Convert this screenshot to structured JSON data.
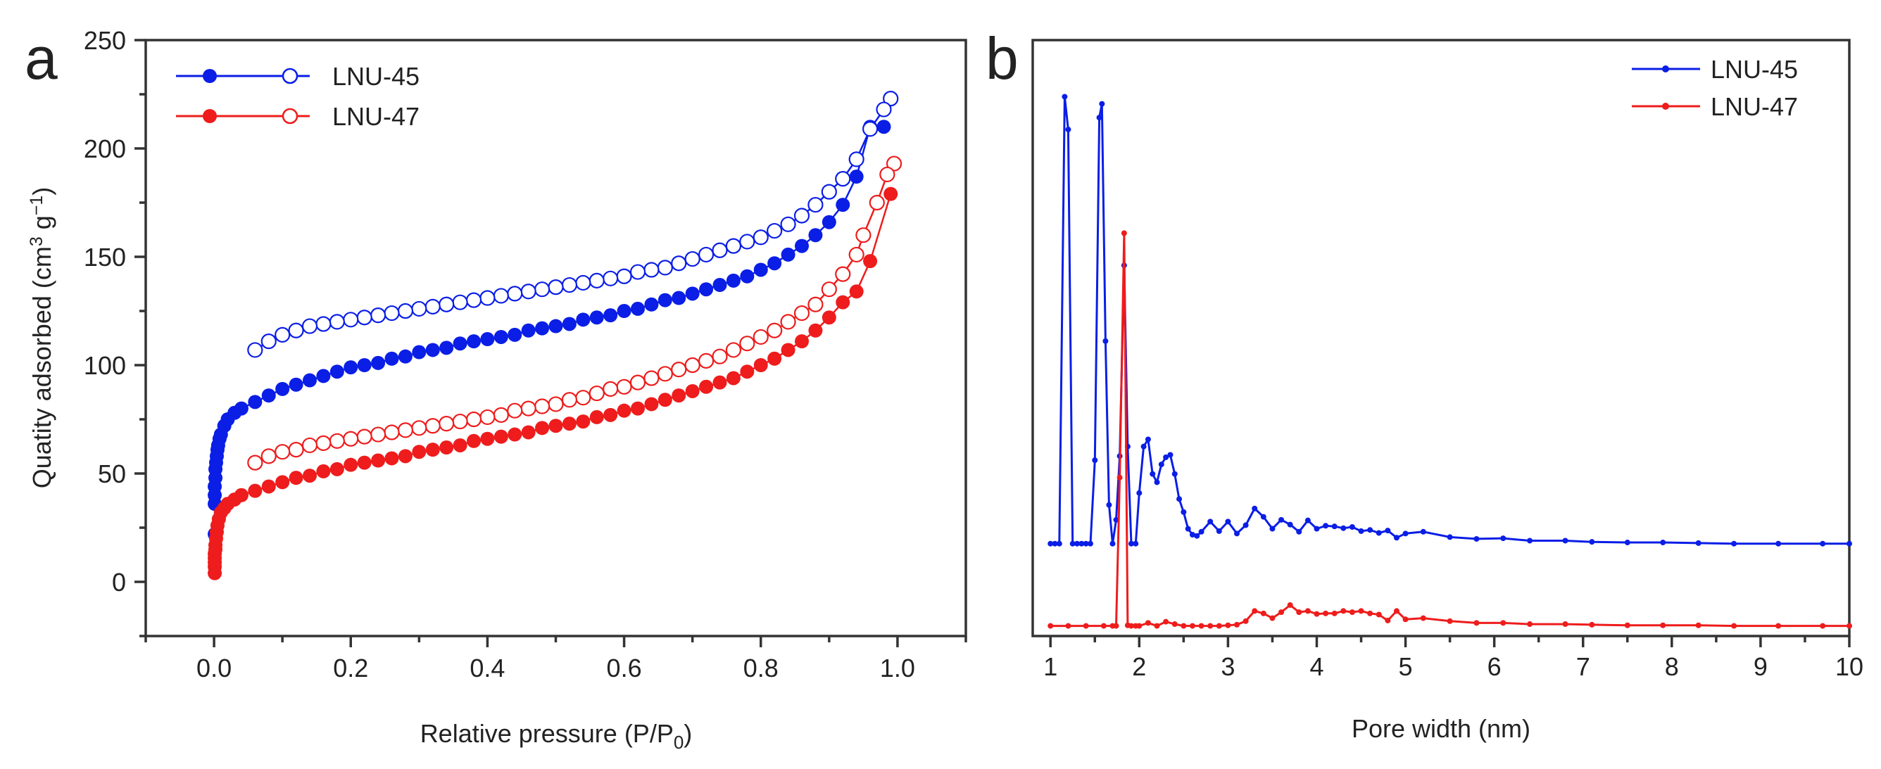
{
  "chart_data": [
    {
      "panel": "a",
      "type": "scatter",
      "title": "",
      "xlabel": "Relative pressure (P/P0)",
      "xlabel_main": "Relative pressure (P/P",
      "xlabel_sub": "0",
      "xlabel_end": ")",
      "ylabel": "Quatity adsorbed (cm3 g-1)",
      "ylabel_main": "Quatity adsorbed (cm",
      "ylabel_sup1": "3",
      "ylabel_mid": " g",
      "ylabel_sup2": "−1",
      "ylabel_end": ")",
      "xlim": [
        -0.1,
        1.1
      ],
      "ylim": [
        -25,
        250
      ],
      "xticks": [
        0.0,
        0.2,
        0.4,
        0.6,
        0.8,
        1.0
      ],
      "xtick_labels": [
        "0.0",
        "0.2",
        "0.4",
        "0.6",
        "0.8",
        "1.0"
      ],
      "yticks": [
        0,
        50,
        100,
        150,
        200,
        250
      ],
      "ytick_labels": [
        "0",
        "50",
        "100",
        "150",
        "200",
        "250"
      ],
      "legend_position": "top-left",
      "series": [
        {
          "name": "LNU-45 adsorption",
          "legend": "LNU-45",
          "color": "#0a1ee6",
          "marker": "filled",
          "x": [
            0.001,
            0.001,
            0.001,
            0.001,
            0.002,
            0.002,
            0.003,
            0.004,
            0.005,
            0.006,
            0.008,
            0.01,
            0.015,
            0.02,
            0.03,
            0.04,
            0.06,
            0.08,
            0.1,
            0.12,
            0.14,
            0.16,
            0.18,
            0.2,
            0.22,
            0.24,
            0.26,
            0.28,
            0.3,
            0.32,
            0.34,
            0.36,
            0.38,
            0.4,
            0.42,
            0.44,
            0.46,
            0.48,
            0.5,
            0.52,
            0.54,
            0.56,
            0.58,
            0.6,
            0.62,
            0.64,
            0.66,
            0.68,
            0.7,
            0.72,
            0.74,
            0.76,
            0.78,
            0.8,
            0.82,
            0.84,
            0.86,
            0.88,
            0.9,
            0.92,
            0.94,
            0.96,
            0.98
          ],
          "y": [
            22,
            36,
            40,
            44,
            48,
            52,
            55,
            58,
            61,
            63,
            66,
            68,
            72,
            75,
            78,
            80,
            83,
            86,
            89,
            91,
            93,
            95,
            97,
            99,
            100,
            101,
            103,
            104,
            106,
            107,
            108,
            110,
            111,
            112,
            113,
            114,
            116,
            117,
            118,
            119,
            121,
            122,
            123,
            125,
            126,
            128,
            130,
            131,
            133,
            135,
            137,
            139,
            141,
            144,
            147,
            151,
            155,
            160,
            166,
            174,
            187,
            210,
            210
          ]
        },
        {
          "name": "LNU-45 desorption",
          "legend": "LNU-45",
          "color": "#0a1ee6",
          "marker": "open",
          "x": [
            0.99,
            0.98,
            0.96,
            0.94,
            0.92,
            0.9,
            0.88,
            0.86,
            0.84,
            0.82,
            0.8,
            0.78,
            0.76,
            0.74,
            0.72,
            0.7,
            0.68,
            0.66,
            0.64,
            0.62,
            0.6,
            0.58,
            0.56,
            0.54,
            0.52,
            0.5,
            0.48,
            0.46,
            0.44,
            0.42,
            0.4,
            0.38,
            0.36,
            0.34,
            0.32,
            0.3,
            0.28,
            0.26,
            0.24,
            0.22,
            0.2,
            0.18,
            0.16,
            0.14,
            0.12,
            0.1,
            0.08,
            0.06
          ],
          "y": [
            223,
            218,
            209,
            195,
            186,
            180,
            174,
            169,
            165,
            162,
            159,
            157,
            155,
            153,
            151,
            149,
            147,
            145,
            144,
            143,
            141,
            140,
            139,
            138,
            137,
            136,
            135,
            134,
            133,
            132,
            131,
            130,
            129,
            128,
            127,
            126,
            125,
            124,
            123,
            122,
            121,
            120,
            119,
            118,
            116,
            114,
            111,
            107
          ]
        },
        {
          "name": "LNU-47 adsorption",
          "legend": "LNU-47",
          "color": "#ee1c1c",
          "marker": "filled",
          "x": [
            0.001,
            0.001,
            0.001,
            0.001,
            0.001,
            0.002,
            0.002,
            0.003,
            0.004,
            0.005,
            0.007,
            0.01,
            0.015,
            0.02,
            0.03,
            0.04,
            0.06,
            0.08,
            0.1,
            0.12,
            0.14,
            0.16,
            0.18,
            0.2,
            0.22,
            0.24,
            0.26,
            0.28,
            0.3,
            0.32,
            0.34,
            0.36,
            0.38,
            0.4,
            0.42,
            0.44,
            0.46,
            0.48,
            0.5,
            0.52,
            0.54,
            0.56,
            0.58,
            0.6,
            0.62,
            0.64,
            0.66,
            0.68,
            0.7,
            0.72,
            0.74,
            0.76,
            0.78,
            0.8,
            0.82,
            0.84,
            0.86,
            0.88,
            0.9,
            0.92,
            0.94,
            0.96,
            0.99
          ],
          "y": [
            4,
            7,
            9,
            11,
            13,
            15,
            17,
            20,
            23,
            26,
            29,
            32,
            34,
            36,
            38,
            40,
            42,
            44,
            46,
            48,
            49,
            51,
            52,
            54,
            55,
            56,
            57,
            58,
            60,
            61,
            62,
            63,
            65,
            66,
            67,
            68,
            69,
            71,
            72,
            73,
            74,
            76,
            77,
            79,
            80,
            82,
            84,
            86,
            88,
            90,
            92,
            94,
            97,
            100,
            103,
            107,
            111,
            116,
            122,
            129,
            134,
            148,
            179
          ]
        },
        {
          "name": "LNU-47 desorption",
          "legend": "LNU-47",
          "color": "#ee1c1c",
          "marker": "open",
          "x": [
            0.995,
            0.985,
            0.97,
            0.95,
            0.94,
            0.92,
            0.9,
            0.88,
            0.86,
            0.84,
            0.82,
            0.8,
            0.78,
            0.76,
            0.74,
            0.72,
            0.7,
            0.68,
            0.66,
            0.64,
            0.62,
            0.6,
            0.58,
            0.56,
            0.54,
            0.52,
            0.5,
            0.48,
            0.46,
            0.44,
            0.42,
            0.4,
            0.38,
            0.36,
            0.34,
            0.32,
            0.3,
            0.28,
            0.26,
            0.24,
            0.22,
            0.2,
            0.18,
            0.16,
            0.14,
            0.12,
            0.1,
            0.08,
            0.06
          ],
          "y": [
            193,
            188,
            175,
            160,
            151,
            142,
            135,
            128,
            124,
            120,
            116,
            113,
            110,
            107,
            104,
            102,
            100,
            98,
            96,
            94,
            92,
            90,
            89,
            87,
            85,
            84,
            82,
            81,
            80,
            79,
            77,
            76,
            75,
            74,
            73,
            72,
            71,
            70,
            69,
            68,
            67,
            66,
            65,
            64,
            63,
            61,
            60,
            58,
            55
          ]
        }
      ],
      "legend": [
        {
          "label": "LNU-45",
          "color": "#0a1ee6"
        },
        {
          "label": "LNU-47",
          "color": "#ee1c1c"
        }
      ]
    },
    {
      "panel": "b",
      "type": "line",
      "title": "",
      "xlabel": "Pore width (nm)",
      "ylabel": "",
      "xlim": [
        0.8,
        10
      ],
      "ylim": [
        0,
        1
      ],
      "y_units": "arbitrary (no y tick labels)",
      "xticks": [
        1,
        2,
        3,
        4,
        5,
        6,
        7,
        8,
        9,
        10
      ],
      "xtick_labels": [
        "1",
        "2",
        "3",
        "4",
        "5",
        "6",
        "7",
        "8",
        "9",
        "10"
      ],
      "legend_position": "top-right",
      "series": [
        {
          "name": "LNU-45",
          "color": "#0a1ee6",
          "x": [
            1.0,
            1.05,
            1.1,
            1.16,
            1.2,
            1.25,
            1.3,
            1.35,
            1.4,
            1.45,
            1.5,
            1.55,
            1.58,
            1.62,
            1.66,
            1.7,
            1.74,
            1.78,
            1.83,
            1.87,
            1.91,
            1.96,
            2.0,
            2.05,
            2.1,
            2.15,
            2.2,
            2.25,
            2.3,
            2.35,
            2.4,
            2.45,
            2.5,
            2.55,
            2.6,
            2.65,
            2.7,
            2.8,
            2.9,
            3.0,
            3.1,
            3.2,
            3.3,
            3.4,
            3.5,
            3.6,
            3.7,
            3.8,
            3.9,
            4.0,
            4.1,
            4.2,
            4.3,
            4.4,
            4.5,
            4.6,
            4.7,
            4.8,
            4.9,
            5.0,
            5.2,
            5.5,
            5.8,
            6.1,
            6.4,
            6.8,
            7.1,
            7.5,
            7.9,
            8.3,
            8.7,
            9.2,
            9.7,
            10.0
          ],
          "y": [
            0.155,
            0.155,
            0.155,
            0.905,
            0.85,
            0.155,
            0.155,
            0.155,
            0.155,
            0.155,
            0.295,
            0.87,
            0.893,
            0.495,
            0.22,
            0.155,
            0.195,
            0.302,
            0.622,
            0.318,
            0.155,
            0.155,
            0.24,
            0.318,
            0.33,
            0.272,
            0.258,
            0.288,
            0.3,
            0.304,
            0.272,
            0.23,
            0.208,
            0.18,
            0.17,
            0.168,
            0.175,
            0.192,
            0.176,
            0.192,
            0.172,
            0.186,
            0.214,
            0.2,
            0.18,
            0.195,
            0.187,
            0.175,
            0.194,
            0.18,
            0.185,
            0.184,
            0.181,
            0.183,
            0.176,
            0.178,
            0.173,
            0.177,
            0.165,
            0.172,
            0.175,
            0.166,
            0.163,
            0.164,
            0.16,
            0.16,
            0.158,
            0.157,
            0.157,
            0.156,
            0.155,
            0.155,
            0.155,
            0.155
          ]
        },
        {
          "name": "LNU-47",
          "color": "#ee1c1c",
          "x": [
            1.0,
            1.2,
            1.4,
            1.6,
            1.7,
            1.74,
            1.78,
            1.83,
            1.87,
            1.91,
            1.96,
            2.0,
            2.1,
            2.2,
            2.3,
            2.4,
            2.5,
            2.6,
            2.7,
            2.8,
            2.9,
            3.0,
            3.1,
            3.2,
            3.3,
            3.4,
            3.5,
            3.6,
            3.7,
            3.8,
            3.9,
            4.0,
            4.1,
            4.2,
            4.3,
            4.4,
            4.5,
            4.6,
            4.7,
            4.8,
            4.9,
            5.0,
            5.2,
            5.5,
            5.8,
            6.1,
            6.4,
            6.8,
            7.1,
            7.5,
            7.9,
            8.3,
            8.7,
            9.2,
            9.7,
            10.0
          ],
          "y": [
            0.017,
            0.017,
            0.017,
            0.017,
            0.017,
            0.017,
            0.266,
            0.676,
            0.018,
            0.017,
            0.017,
            0.017,
            0.022,
            0.017,
            0.024,
            0.02,
            0.017,
            0.017,
            0.017,
            0.017,
            0.017,
            0.018,
            0.019,
            0.025,
            0.042,
            0.038,
            0.03,
            0.04,
            0.052,
            0.04,
            0.042,
            0.037,
            0.038,
            0.038,
            0.042,
            0.04,
            0.042,
            0.038,
            0.036,
            0.026,
            0.042,
            0.028,
            0.03,
            0.025,
            0.022,
            0.022,
            0.02,
            0.02,
            0.019,
            0.018,
            0.018,
            0.018,
            0.017,
            0.017,
            0.017,
            0.017
          ]
        }
      ],
      "legend": [
        {
          "label": "LNU-45",
          "color": "#0a1ee6"
        },
        {
          "label": "LNU-47",
          "color": "#ee1c1c"
        }
      ]
    }
  ],
  "panels": {
    "a": {
      "label": "a"
    },
    "b": {
      "label": "b"
    }
  }
}
